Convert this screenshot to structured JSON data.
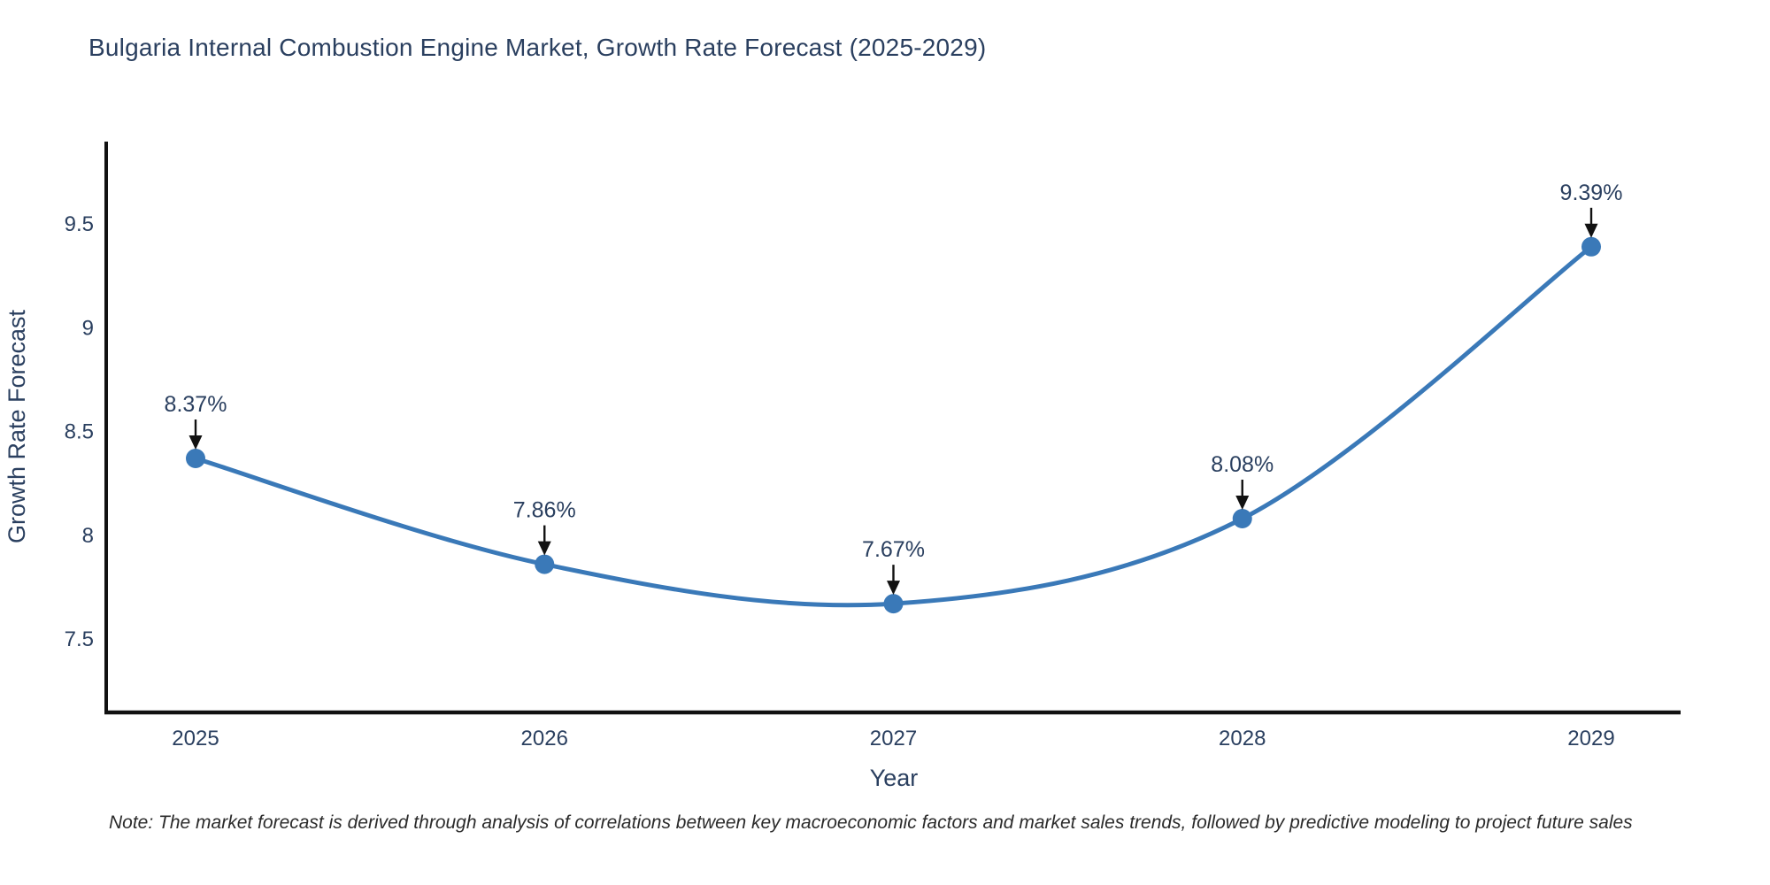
{
  "title": "Bulgaria Internal Combustion Engine Market, Growth Rate Forecast (2025-2029)",
  "note": "Note: The market forecast is derived through analysis of correlations between key macroeconomic factors and market sales trends, followed by predictive modeling to project future sales",
  "chart_data": {
    "type": "line",
    "line_shape": "spline",
    "x": [
      2025,
      2026,
      2027,
      2028,
      2029
    ],
    "x_tick_labels": [
      "2025",
      "2026",
      "2027",
      "2028",
      "2029"
    ],
    "values": [
      8.37,
      7.86,
      7.67,
      8.08,
      9.39
    ],
    "point_labels": [
      "8.37%",
      "7.86%",
      "7.67%",
      "8.08%",
      "9.39%"
    ],
    "title": "Bulgaria Internal Combustion Engine Market, Growth Rate Forecast (2025-2029)",
    "xlabel": "Year",
    "ylabel": "Growth Rate Forecast",
    "yticks": [
      7.5,
      8,
      8.5,
      9,
      9.5
    ],
    "ytick_labels": [
      "7.5",
      "8",
      "8.5",
      "9",
      "9.5"
    ],
    "ylim": [
      7.15,
      9.9
    ],
    "grid": false,
    "legend": false,
    "colors": {
      "line": "#3a79b8",
      "marker": "#3a79b8",
      "axis_line": "#111111",
      "text": "#2a3f5f",
      "arrow": "#111111",
      "background": "#ffffff"
    }
  }
}
